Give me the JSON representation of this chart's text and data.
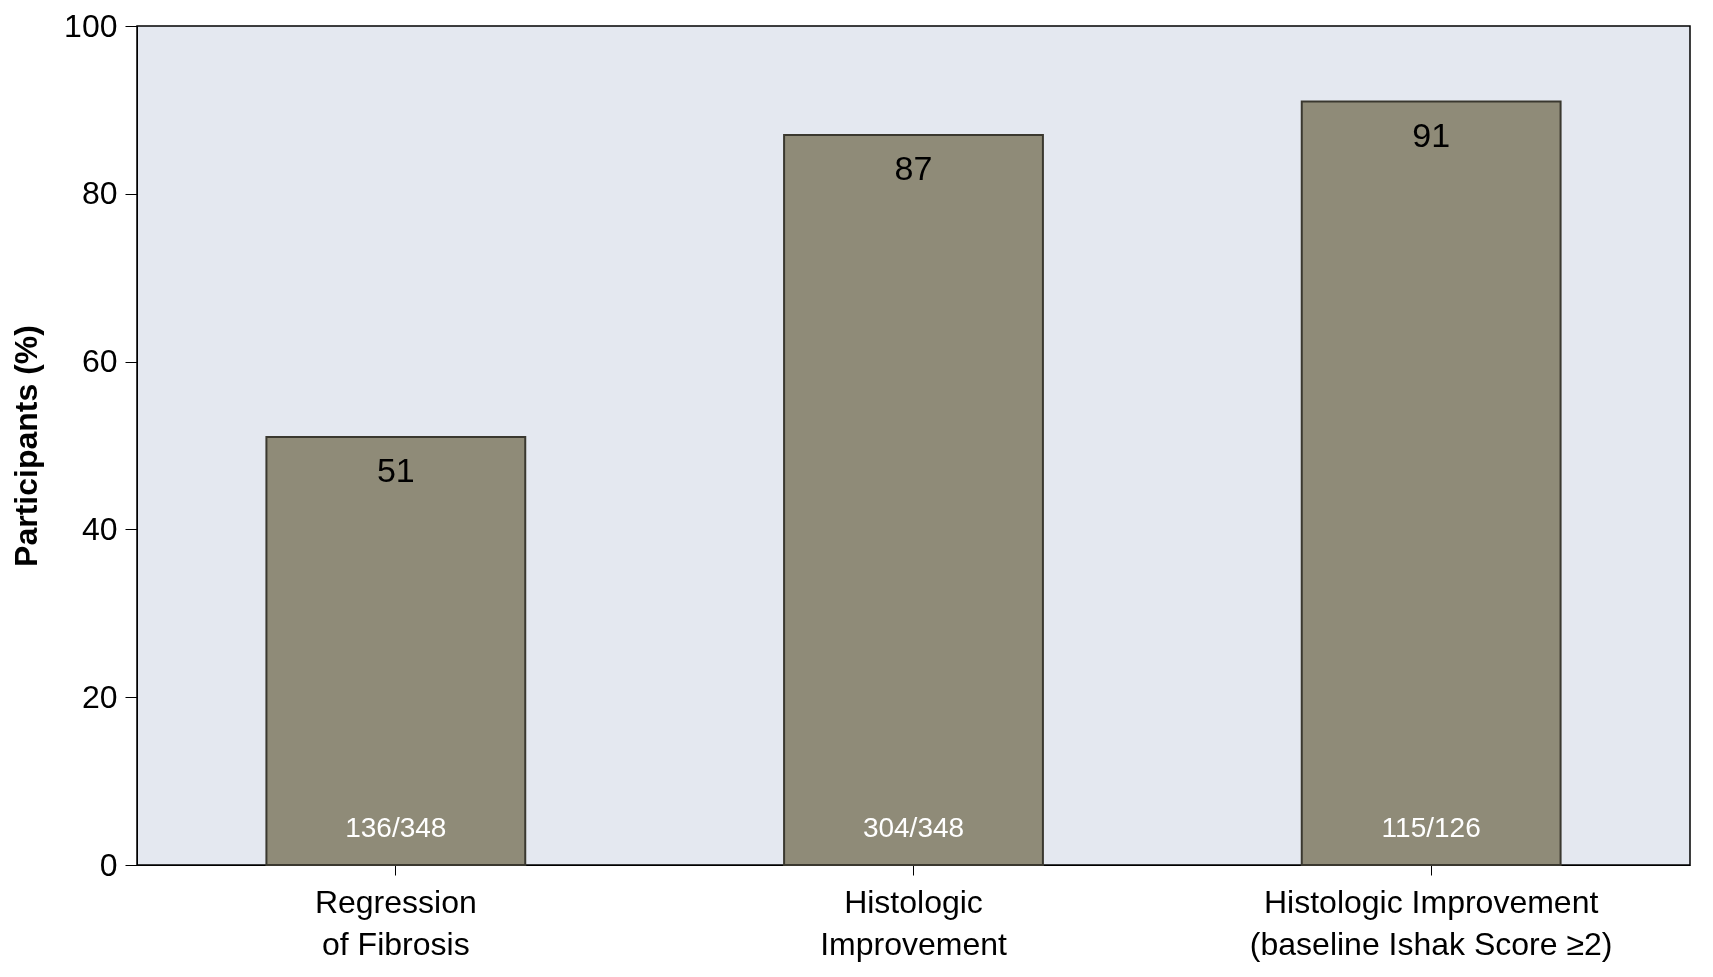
{
  "chart_data": {
    "type": "bar",
    "ylabel": "Participants (%)",
    "categories": [
      "Regression\nof Fibrosis",
      "Histologic\nImprovement",
      "Histologic Improvement\n(baseline Ishak Score ≥2)"
    ],
    "values": [
      51,
      87,
      91
    ],
    "color": "#8f8b78",
    "data_labels": true,
    "ylim": [
      0,
      100
    ],
    "yticks": [
      0,
      20,
      40,
      60,
      80,
      100
    ],
    "grid": false,
    "annotations": [
      "136/348",
      "304/348",
      "115/126"
    ]
  }
}
